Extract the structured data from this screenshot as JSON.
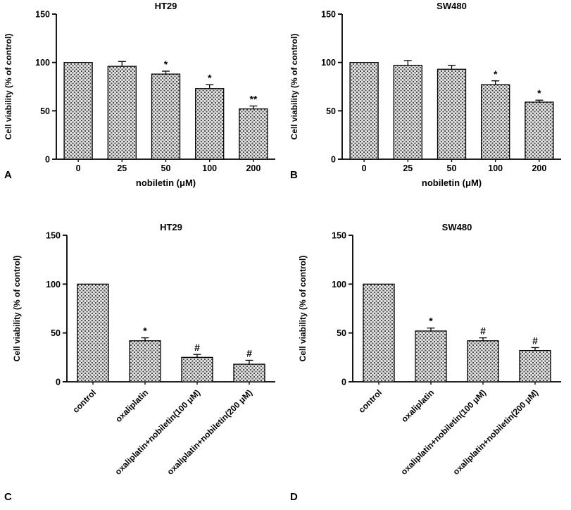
{
  "figure": {
    "background": "#ffffff",
    "axis_color": "#000000",
    "bar_border": "#000000",
    "bar_pattern_bg": "#e2e2e2",
    "bar_pattern_dot": "#4a4a4a"
  },
  "chart_data": [
    {
      "type": "bar",
      "panel_label": "A",
      "title": "HT29",
      "xlabel": "nobiletin (μM)",
      "ylabel": "Cell viability (% of control)",
      "ylim": [
        0,
        150
      ],
      "yticks": [
        0,
        50,
        100,
        150
      ],
      "categories": [
        "0",
        "25",
        "50",
        "100",
        "200"
      ],
      "values": [
        100,
        96,
        88,
        73,
        52
      ],
      "errors": [
        0,
        5,
        3,
        4,
        3
      ],
      "significance": [
        "",
        "",
        "*",
        "*",
        "**"
      ],
      "rotated_labels": false,
      "grid": false,
      "legend": "none"
    },
    {
      "type": "bar",
      "panel_label": "B",
      "title": "SW480",
      "xlabel": "nobiletin (μM)",
      "ylabel": "Cell viability (% of control)",
      "ylim": [
        0,
        150
      ],
      "yticks": [
        0,
        50,
        100,
        150
      ],
      "categories": [
        "0",
        "25",
        "50",
        "100",
        "200"
      ],
      "values": [
        100,
        97,
        93,
        77,
        59
      ],
      "errors": [
        0,
        5,
        4,
        4,
        2
      ],
      "significance": [
        "",
        "",
        "",
        "*",
        "*"
      ],
      "rotated_labels": false,
      "grid": false,
      "legend": "none"
    },
    {
      "type": "bar",
      "panel_label": "C",
      "title": "HT29",
      "xlabel": "",
      "ylabel": "Cell viability (% of control)",
      "ylim": [
        0,
        150
      ],
      "yticks": [
        0,
        50,
        100,
        150
      ],
      "categories": [
        "control",
        "oxaliplatin",
        "oxaliplatin+nobiletin(100 μM)",
        "oxaliplatin+nobiletin(200 μM)"
      ],
      "values": [
        100,
        42,
        25,
        18
      ],
      "errors": [
        0,
        3,
        3,
        4
      ],
      "significance": [
        "",
        "*",
        "#",
        "#"
      ],
      "rotated_labels": true,
      "grid": false,
      "legend": "none"
    },
    {
      "type": "bar",
      "panel_label": "D",
      "title": "SW480",
      "xlabel": "",
      "ylabel": "Cell viability (% of control)",
      "ylim": [
        0,
        150
      ],
      "yticks": [
        0,
        50,
        100,
        150
      ],
      "categories": [
        "control",
        "oxaliplatin",
        "oxaliplatin+nobiletin(100 μM)",
        "oxaliplatin+nobiletin(200 μM)"
      ],
      "values": [
        100,
        52,
        42,
        32
      ],
      "errors": [
        0,
        3,
        3,
        3
      ],
      "significance": [
        "",
        "*",
        "#",
        "#"
      ],
      "rotated_labels": true,
      "grid": false,
      "legend": "none"
    }
  ]
}
